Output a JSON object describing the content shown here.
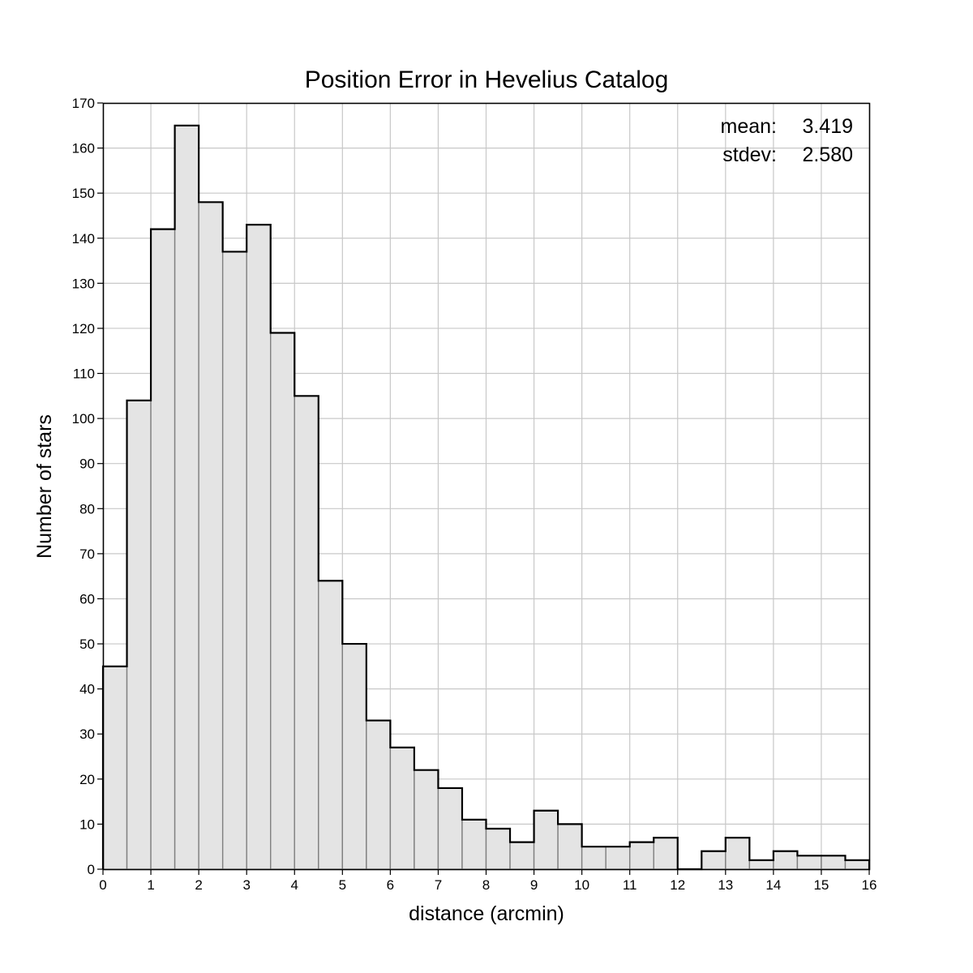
{
  "chart_data": {
    "type": "bar",
    "title": "Position Error in Hevelius Catalog",
    "xlabel": "distance (arcmin)",
    "ylabel": "Number of stars",
    "xlim": [
      0,
      16
    ],
    "ylim": [
      0,
      170
    ],
    "bin_width": 0.5,
    "bin_start": 0,
    "grid": true,
    "x_ticks": [
      "0",
      "1",
      "2",
      "3",
      "4",
      "5",
      "6",
      "7",
      "8",
      "9",
      "10",
      "11",
      "12",
      "13",
      "14",
      "15",
      "16"
    ],
    "y_ticks": [
      "0",
      "10",
      "20",
      "30",
      "40",
      "50",
      "60",
      "70",
      "80",
      "90",
      "100",
      "110",
      "120",
      "130",
      "140",
      "150",
      "160",
      "170"
    ],
    "values": [
      45,
      104,
      142,
      165,
      148,
      137,
      143,
      119,
      105,
      64,
      50,
      33,
      27,
      22,
      18,
      11,
      9,
      6,
      13,
      10,
      5,
      5,
      6,
      7,
      0,
      4,
      7,
      2,
      4,
      3,
      3,
      2
    ],
    "stats": {
      "mean_label": "mean:",
      "mean_value": "3.419",
      "stdev_label": "stdev:",
      "stdev_value": "2.580"
    },
    "legend_position": "top-right",
    "colors": {
      "bar_fill": "#e4e4e4",
      "bar_edge": "#808080",
      "outline": "#000000",
      "grid": "#c8c8c8"
    }
  }
}
